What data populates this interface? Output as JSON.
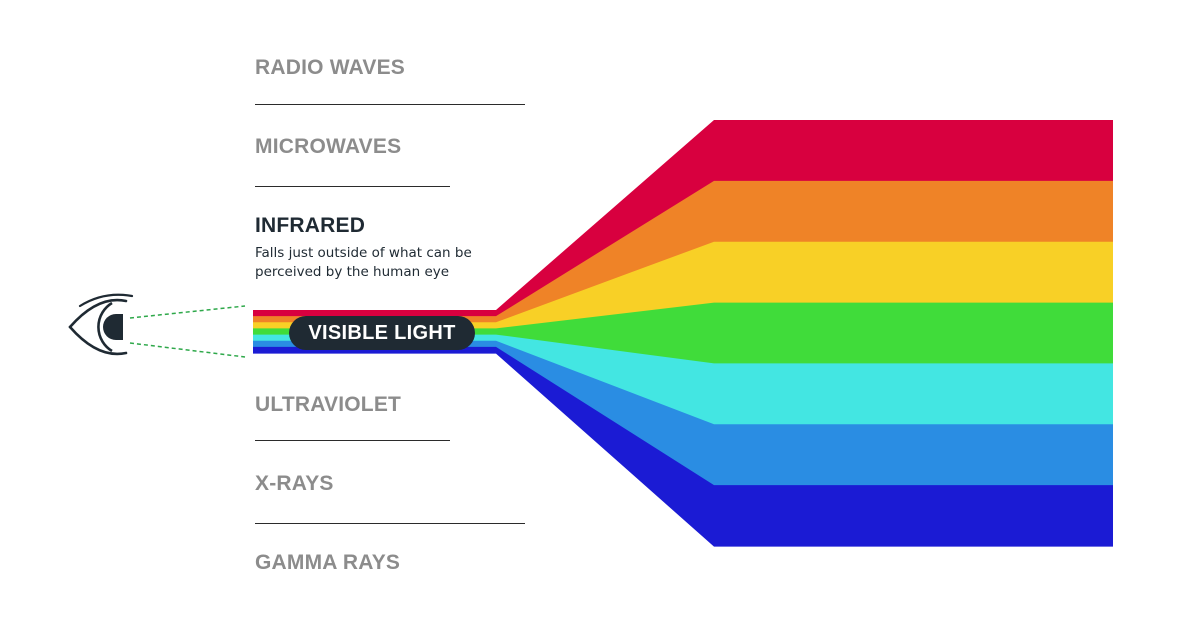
{
  "bands": [
    {
      "label": "RADIO WAVES",
      "active": false
    },
    {
      "label": "MICROWAVES",
      "active": false
    },
    {
      "label": "INFRARED",
      "active": true,
      "description": "Falls just outside of what can be perceived by the human eye"
    },
    {
      "label": "ULTRAVIOLET",
      "active": false
    },
    {
      "label": "X-RAYS",
      "active": false
    },
    {
      "label": "GAMMA RAYS",
      "active": false
    }
  ],
  "visible_light": {
    "label": "VISIBLE LIGHT",
    "colors": [
      "#d8003f",
      "#ef8327",
      "#f8d026",
      "#40dc3a",
      "#43e6e2",
      "#2a8de3",
      "#1b1bd4"
    ]
  },
  "icons": [
    "eye-icon"
  ],
  "colors": {
    "inactive_text": "#8c8c8c",
    "active_text": "#1f2a33",
    "pill_background": "#1f2a33",
    "sight_line": "#2ea84a"
  }
}
